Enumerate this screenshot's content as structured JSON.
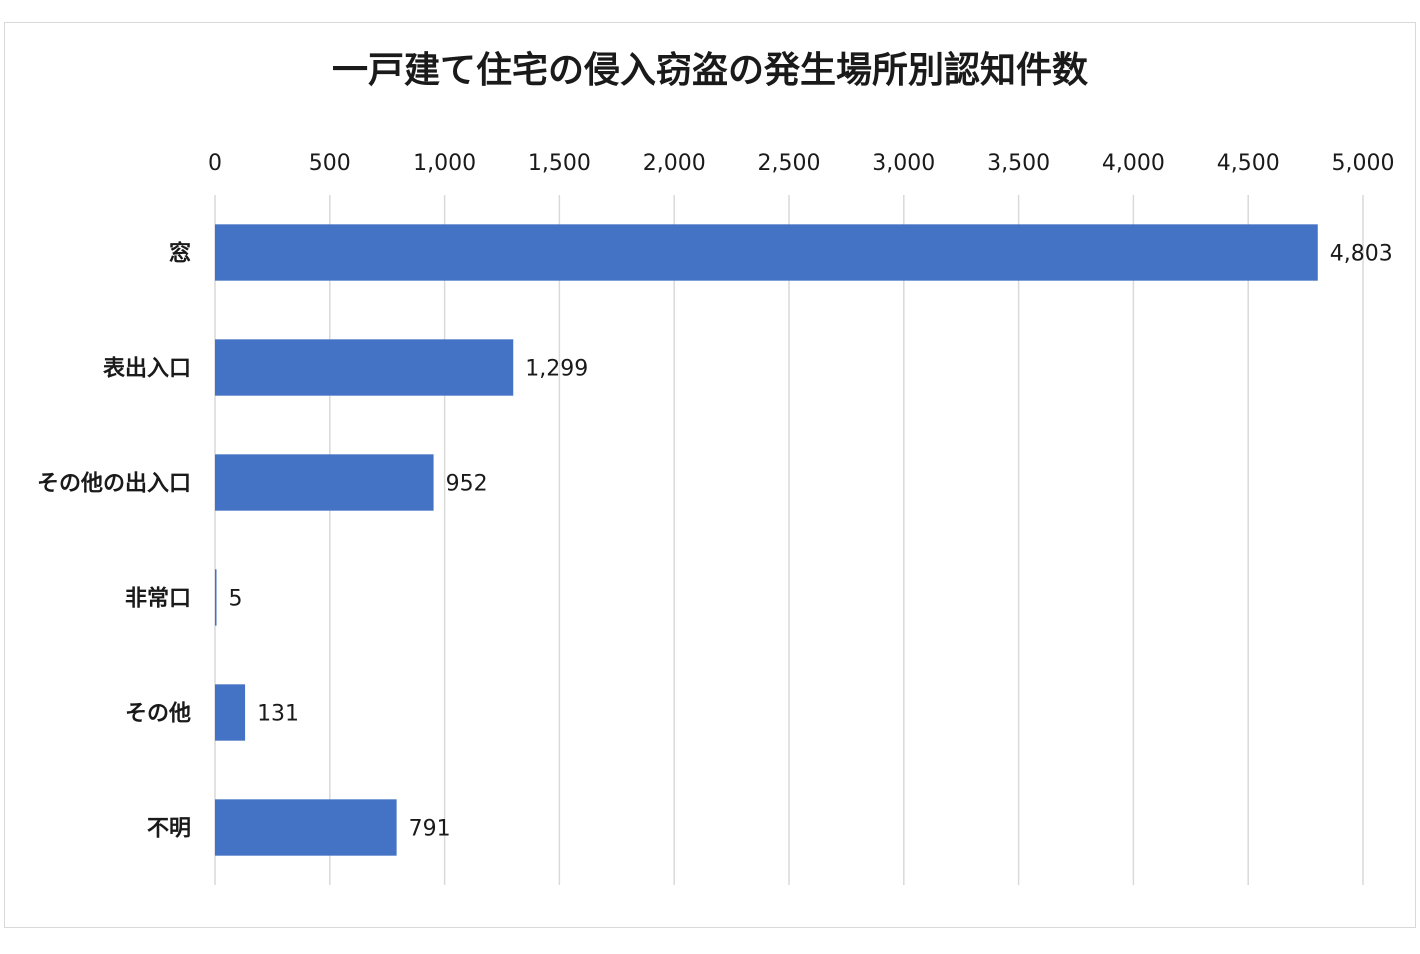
{
  "chart_data": {
    "type": "bar",
    "orientation": "horizontal",
    "title": "一戸建て住宅の侵入窃盗の発生場所別認知件数",
    "xlabel": "",
    "ylabel": "",
    "categories": [
      "窓",
      "表出入口",
      "その他の出入口",
      "非常口",
      "その他",
      "不明"
    ],
    "values": [
      4803,
      1299,
      952,
      5,
      131,
      791
    ],
    "data_labels": [
      "4,803",
      "1,299",
      "952",
      "5",
      "131",
      "791"
    ],
    "xlim": [
      0,
      5000
    ],
    "x_ticks": [
      0,
      500,
      1000,
      1500,
      2000,
      2500,
      3000,
      3500,
      4000,
      4500,
      5000
    ],
    "x_tick_labels": [
      "0",
      "500",
      "1,000",
      "1,500",
      "2,000",
      "2,500",
      "3,000",
      "3,500",
      "4,000",
      "4,500",
      "5,000"
    ],
    "axis_position": "top",
    "grid": true,
    "legend": "none",
    "bar_color": "#4472c4",
    "grid_color": "#d9d9d9"
  }
}
